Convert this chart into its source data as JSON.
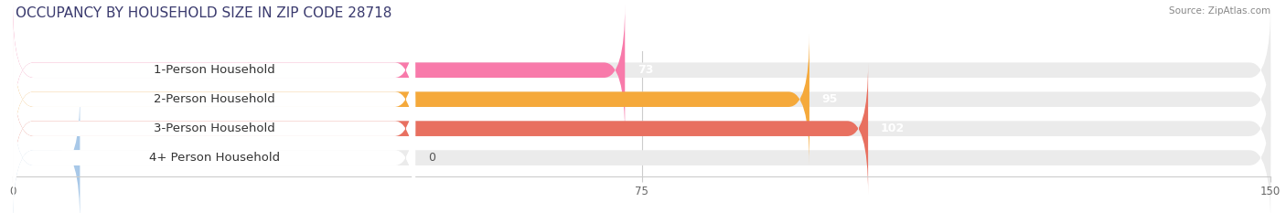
{
  "title": "OCCUPANCY BY HOUSEHOLD SIZE IN ZIP CODE 28718",
  "source": "Source: ZipAtlas.com",
  "categories": [
    "1-Person Household",
    "2-Person Household",
    "3-Person Household",
    "4+ Person Household"
  ],
  "values": [
    73,
    95,
    102,
    0
  ],
  "bar_colors": [
    "#f87aaa",
    "#f5a93b",
    "#e87060",
    "#a8c8e8"
  ],
  "background_color": "#ffffff",
  "bar_bg_color": "#ebebeb",
  "xlim": [
    0,
    150
  ],
  "xticks": [
    0,
    75,
    150
  ],
  "label_fontsize": 9.5,
  "value_fontsize": 9,
  "title_fontsize": 11,
  "bar_height": 0.52,
  "label_bg_color": "#ffffff"
}
